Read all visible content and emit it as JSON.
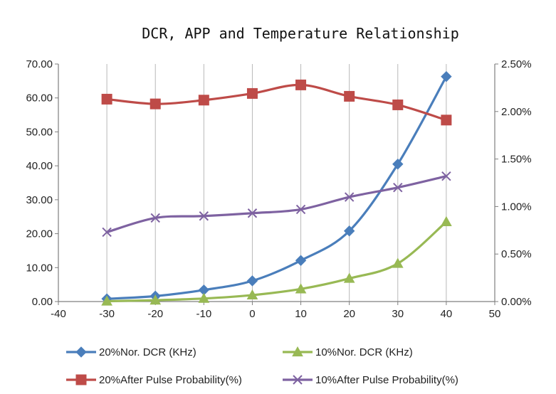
{
  "chart_data": {
    "type": "line",
    "title": "DCR, APP and Temperature Relationship",
    "xlabel": "",
    "ylabel": "",
    "x_ticks": [
      "-40",
      "-30",
      "-20",
      "-10",
      "0",
      "10",
      "20",
      "30",
      "40",
      "50"
    ],
    "xlim": [
      -40,
      50
    ],
    "ylim_left": [
      0,
      70
    ],
    "y_left_ticks": [
      "0.00",
      "10.00",
      "20.00",
      "30.00",
      "40.00",
      "50.00",
      "60.00",
      "70.00"
    ],
    "ylim_right": [
      0,
      2.5
    ],
    "y_right_ticks": [
      "0.00%",
      "0.50%",
      "1.00%",
      "1.50%",
      "2.00%",
      "2.50%"
    ],
    "grid": "vertical",
    "legend_position": "bottom",
    "x": [
      -30,
      -20,
      -10,
      0,
      10,
      20,
      30,
      40
    ],
    "series": [
      {
        "name": "20%Nor. DCR (KHz)",
        "axis": "left",
        "marker": "diamond",
        "color": "#4a7ebb",
        "values": [
          0.8,
          1.6,
          3.4,
          6.1,
          12.1,
          20.8,
          40.5,
          66.3
        ]
      },
      {
        "name": "10%Nor. DCR (KHz)",
        "axis": "left",
        "marker": "triangle",
        "color": "#98b954",
        "values": [
          0.1,
          0.4,
          0.9,
          1.9,
          3.7,
          6.8,
          11.2,
          23.5
        ]
      },
      {
        "name": "20%After Pulse Probability(%)",
        "axis": "right",
        "marker": "square",
        "color": "#be4b48",
        "values": [
          2.13,
          2.08,
          2.12,
          2.19,
          2.28,
          2.16,
          2.07,
          1.91
        ]
      },
      {
        "name": "10%After Pulse Probability(%)",
        "axis": "right",
        "marker": "x",
        "color": "#7e62a1",
        "values": [
          0.73,
          0.88,
          0.9,
          0.93,
          0.97,
          1.1,
          1.2,
          1.32
        ]
      }
    ]
  }
}
